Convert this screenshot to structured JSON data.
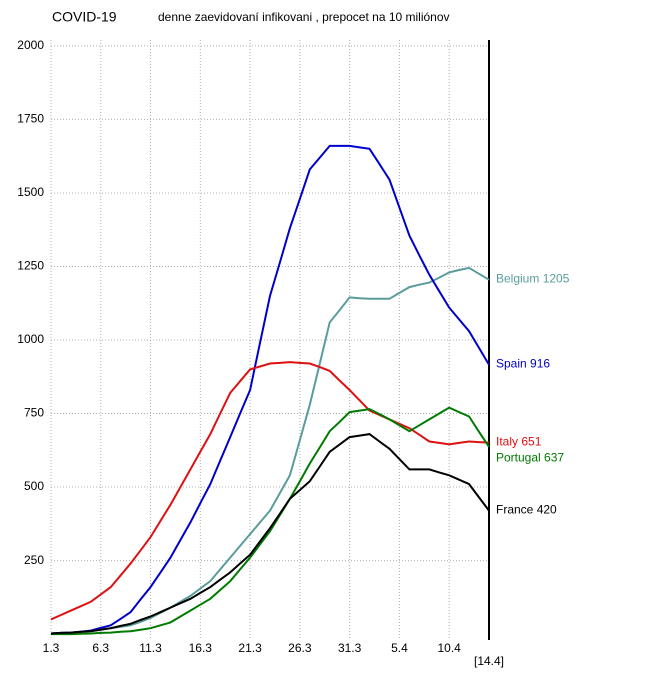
{
  "chart_data": {
    "type": "line",
    "title": "COVID-19",
    "subtitle": "denne zaevidovaní infikovani , prepocet na 10 miliónov",
    "categories": [
      "1.3",
      null,
      null,
      null,
      null,
      "6.3",
      null,
      null,
      null,
      null,
      "11.3",
      null,
      null,
      null,
      null,
      "16.3",
      null,
      null,
      null,
      null,
      "21.3",
      null,
      null,
      null,
      null,
      "26.3",
      null,
      null,
      null,
      null,
      "31.3",
      null,
      null,
      null,
      null,
      "5.4",
      null,
      null,
      null,
      null,
      "10.4",
      null,
      null,
      null,
      "[14.4]"
    ],
    "ylim": [
      -20,
      2020
    ],
    "yticks": [
      250,
      500,
      750,
      1000,
      1250,
      1500,
      1750,
      2000
    ],
    "grid": true,
    "series": [
      {
        "name": "Belgium",
        "color": "#5a9c9c",
        "values": [
          2,
          4,
          5,
          8,
          12,
          16,
          20,
          25,
          30,
          42,
          55,
          72,
          90,
          110,
          130,
          155,
          180,
          220,
          260,
          300,
          340,
          380,
          420,
          480,
          540,
          660,
          780,
          920,
          1060,
          1102,
          1145,
          1142,
          1140,
          1140,
          1140,
          1160,
          1180,
          1188,
          1195,
          1212,
          1230,
          1238,
          1245,
          1225,
          1205
        ]
      },
      {
        "name": "Spain",
        "color": "#0000cc",
        "values": [
          2,
          4,
          5,
          8,
          12,
          21,
          30,
          52,
          75,
          118,
          160,
          210,
          260,
          320,
          380,
          445,
          510,
          590,
          670,
          750,
          830,
          990,
          1150,
          1265,
          1380,
          1480,
          1580,
          1620,
          1660,
          1660,
          1660,
          1655,
          1650,
          1598,
          1545,
          1450,
          1355,
          1288,
          1222,
          1166,
          1110,
          1070,
          1030,
          973,
          916
        ]
      },
      {
        "name": "Italy",
        "color": "#dd1111",
        "values": [
          50,
          65,
          80,
          95,
          110,
          135,
          160,
          200,
          240,
          285,
          330,
          385,
          440,
          500,
          560,
          620,
          680,
          750,
          820,
          860,
          900,
          910,
          920,
          922,
          925,
          922,
          920,
          908,
          895,
          862,
          830,
          795,
          760,
          745,
          730,
          715,
          700,
          678,
          655,
          650,
          645,
          650,
          655,
          653,
          651
        ]
      },
      {
        "name": "Portugal",
        "color": "#007a00",
        "values": [
          0,
          0,
          0,
          1,
          2,
          4,
          5,
          8,
          10,
          15,
          20,
          30,
          40,
          60,
          80,
          100,
          120,
          150,
          180,
          220,
          260,
          305,
          350,
          405,
          460,
          520,
          580,
          635,
          690,
          722,
          755,
          760,
          765,
          748,
          730,
          710,
          690,
          710,
          730,
          750,
          770,
          755,
          740,
          688,
          637
        ]
      },
      {
        "name": "France",
        "color": "#000000",
        "values": [
          2,
          4,
          5,
          8,
          10,
          15,
          20,
          28,
          35,
          48,
          60,
          75,
          90,
          105,
          120,
          140,
          160,
          185,
          210,
          240,
          270,
          315,
          360,
          410,
          460,
          490,
          520,
          570,
          620,
          645,
          670,
          675,
          680,
          655,
          630,
          595,
          560,
          560,
          560,
          550,
          540,
          525,
          510,
          465,
          420
        ]
      }
    ]
  }
}
